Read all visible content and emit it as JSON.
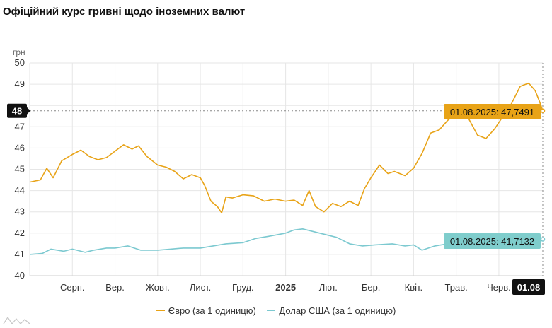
{
  "page": {
    "title": "Офіційний курс гривні щодо іноземних валют"
  },
  "colors": {
    "euro": "#e8a317",
    "usd": "#7cc9d0",
    "usd_label_bg": "#7fcdcc",
    "axis_badge_bg": "#111111"
  },
  "chart_data": {
    "type": "line",
    "title": "Офіційний курс гривні щодо іноземних валют",
    "ylabel": "грн",
    "xlabel": "",
    "ylim": [
      40,
      50
    ],
    "yticks": [
      "40",
      "41",
      "42",
      "43",
      "44",
      "45",
      "46",
      "47",
      "48",
      "49",
      "50"
    ],
    "yticks_visible": [
      "40",
      "41",
      "42",
      "43",
      "44",
      "45",
      "46",
      "47",
      "49",
      "50"
    ],
    "xticks": [
      "Серп.",
      "Вер.",
      "Жовт.",
      "Лист.",
      "Груд.",
      "2025",
      "Лют.",
      "Бер.",
      "Квіт.",
      "Трав.",
      "Черв."
    ],
    "xtick_months": [
      1,
      2,
      3,
      4,
      5,
      6,
      7,
      8,
      9,
      10,
      11
    ],
    "x_unit": "months since 1 July 2024 (0 = Jul 2024, 6 = Jan 2025)",
    "x_end": 12.03,
    "grid": true,
    "legend_position": "bottom",
    "cursor": {
      "x_label": "01.08",
      "y_label": "48",
      "x": 12.03,
      "y": 47.75
    },
    "series": [
      {
        "name": "Євро (за 1 одиницю)",
        "color": "#e8a317",
        "end_label": "01.08.2025: 47,7491",
        "points": [
          [
            0.0,
            44.4
          ],
          [
            0.25,
            44.5
          ],
          [
            0.4,
            45.05
          ],
          [
            0.55,
            44.6
          ],
          [
            0.75,
            45.4
          ],
          [
            1.0,
            45.7
          ],
          [
            1.2,
            45.9
          ],
          [
            1.4,
            45.6
          ],
          [
            1.6,
            45.45
          ],
          [
            1.8,
            45.55
          ],
          [
            2.0,
            45.85
          ],
          [
            2.2,
            46.15
          ],
          [
            2.4,
            45.95
          ],
          [
            2.55,
            46.1
          ],
          [
            2.75,
            45.6
          ],
          [
            3.0,
            45.2
          ],
          [
            3.2,
            45.1
          ],
          [
            3.4,
            44.9
          ],
          [
            3.6,
            44.55
          ],
          [
            3.8,
            44.75
          ],
          [
            4.0,
            44.6
          ],
          [
            4.1,
            44.25
          ],
          [
            4.25,
            43.5
          ],
          [
            4.4,
            43.25
          ],
          [
            4.5,
            42.95
          ],
          [
            4.6,
            43.7
          ],
          [
            4.75,
            43.65
          ],
          [
            5.0,
            43.8
          ],
          [
            5.25,
            43.75
          ],
          [
            5.5,
            43.5
          ],
          [
            5.75,
            43.6
          ],
          [
            6.0,
            43.5
          ],
          [
            6.2,
            43.55
          ],
          [
            6.4,
            43.3
          ],
          [
            6.55,
            44.0
          ],
          [
            6.7,
            43.25
          ],
          [
            6.9,
            43.0
          ],
          [
            7.1,
            43.4
          ],
          [
            7.3,
            43.25
          ],
          [
            7.5,
            43.5
          ],
          [
            7.7,
            43.3
          ],
          [
            7.85,
            44.1
          ],
          [
            8.0,
            44.6
          ],
          [
            8.2,
            45.2
          ],
          [
            8.4,
            44.8
          ],
          [
            8.55,
            44.9
          ],
          [
            8.8,
            44.7
          ],
          [
            9.0,
            45.05
          ],
          [
            9.2,
            45.75
          ],
          [
            9.4,
            46.7
          ],
          [
            9.6,
            46.85
          ],
          [
            9.8,
            47.3
          ],
          [
            10.0,
            47.6
          ],
          [
            10.15,
            47.5
          ],
          [
            10.3,
            47.35
          ],
          [
            10.5,
            46.6
          ],
          [
            10.7,
            46.45
          ],
          [
            10.9,
            46.9
          ],
          [
            11.1,
            47.5
          ],
          [
            11.3,
            48.1
          ],
          [
            11.5,
            48.9
          ],
          [
            11.7,
            49.05
          ],
          [
            11.85,
            48.7
          ],
          [
            11.95,
            48.2
          ],
          [
            12.03,
            47.75
          ]
        ]
      },
      {
        "name": "Долар США (за 1 одиницю)",
        "color": "#7cc9d0",
        "end_label": "01.08.2025: 41,7132",
        "points": [
          [
            0.0,
            41.0
          ],
          [
            0.3,
            41.05
          ],
          [
            0.5,
            41.25
          ],
          [
            0.8,
            41.15
          ],
          [
            1.0,
            41.25
          ],
          [
            1.3,
            41.1
          ],
          [
            1.5,
            41.2
          ],
          [
            1.8,
            41.3
          ],
          [
            2.0,
            41.3
          ],
          [
            2.3,
            41.4
          ],
          [
            2.6,
            41.2
          ],
          [
            3.0,
            41.2
          ],
          [
            3.3,
            41.25
          ],
          [
            3.6,
            41.3
          ],
          [
            4.0,
            41.3
          ],
          [
            4.3,
            41.4
          ],
          [
            4.6,
            41.5
          ],
          [
            5.0,
            41.55
          ],
          [
            5.3,
            41.75
          ],
          [
            5.6,
            41.85
          ],
          [
            6.0,
            42.0
          ],
          [
            6.2,
            42.15
          ],
          [
            6.4,
            42.2
          ],
          [
            6.6,
            42.1
          ],
          [
            6.9,
            41.95
          ],
          [
            7.2,
            41.8
          ],
          [
            7.5,
            41.5
          ],
          [
            7.8,
            41.4
          ],
          [
            8.1,
            41.45
          ],
          [
            8.5,
            41.5
          ],
          [
            8.8,
            41.4
          ],
          [
            9.0,
            41.45
          ],
          [
            9.2,
            41.2
          ],
          [
            9.5,
            41.4
          ],
          [
            9.8,
            41.5
          ],
          [
            10.0,
            41.55
          ],
          [
            10.3,
            41.6
          ],
          [
            10.6,
            41.55
          ],
          [
            11.0,
            41.55
          ],
          [
            11.3,
            41.6
          ],
          [
            11.6,
            41.55
          ],
          [
            11.8,
            41.55
          ],
          [
            12.03,
            41.71
          ]
        ]
      }
    ]
  }
}
